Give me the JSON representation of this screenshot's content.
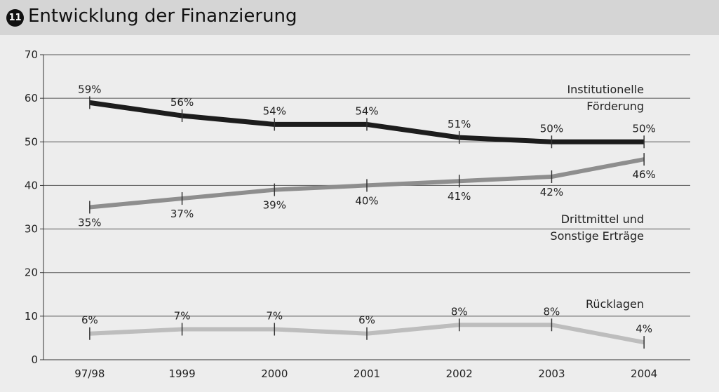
{
  "chart_data": {
    "type": "line",
    "figure_number": "11",
    "title": "Entwicklung der Finanzierung",
    "categories": [
      "97/98",
      "1999",
      "2000",
      "2001",
      "2002",
      "2003",
      "2004"
    ],
    "ylim": [
      0,
      70
    ],
    "yticks": [
      0,
      10,
      20,
      30,
      40,
      50,
      60,
      70
    ],
    "grid": true,
    "series": [
      {
        "name": "Institutionelle Förderung",
        "color": "#1c1c1c",
        "label_position": "above",
        "values": [
          59,
          56,
          54,
          54,
          51,
          50,
          50
        ],
        "value_labels": [
          "59%",
          "56%",
          "54%",
          "54%",
          "51%",
          "50%",
          "50%"
        ]
      },
      {
        "name": "Drittmittel und Sonstige Erträge",
        "color": "#8e8e8e",
        "label_position": "below",
        "values": [
          35,
          37,
          39,
          40,
          41,
          42,
          46
        ],
        "value_labels": [
          "35%",
          "37%",
          "39%",
          "40%",
          "41%",
          "42%",
          "46%"
        ]
      },
      {
        "name": "Rücklagen",
        "color": "#bdbdbd",
        "label_position": "above",
        "values": [
          6,
          7,
          7,
          6,
          8,
          8,
          4
        ],
        "value_labels": [
          "6%",
          "7%",
          "7%",
          "6%",
          "8%",
          "8%",
          "4%"
        ]
      }
    ]
  }
}
